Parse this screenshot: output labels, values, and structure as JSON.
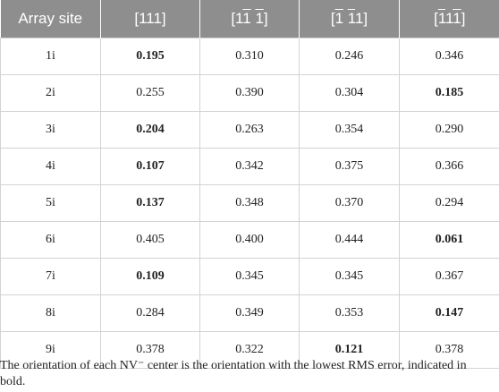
{
  "table": {
    "headers": [
      {
        "label": "Array site"
      },
      {
        "parts": [
          {
            "t": "[111]",
            "o": false
          }
        ]
      },
      {
        "parts": [
          {
            "t": "[1",
            "o": false
          },
          {
            "t": "1",
            "o": true
          },
          {
            "t": " ",
            "o": false
          },
          {
            "t": "1",
            "o": true
          },
          {
            "t": "]",
            "o": false
          }
        ]
      },
      {
        "parts": [
          {
            "t": "[",
            "o": false
          },
          {
            "t": "1",
            "o": true
          },
          {
            "t": " ",
            "o": false
          },
          {
            "t": "1",
            "o": true
          },
          {
            "t": "1]",
            "o": false
          }
        ]
      },
      {
        "parts": [
          {
            "t": "[",
            "o": false
          },
          {
            "t": "1",
            "o": true
          },
          {
            "t": "1",
            "o": false
          },
          {
            "t": "1",
            "o": true
          },
          {
            "t": "]",
            "o": false
          }
        ]
      }
    ],
    "rows": [
      {
        "site": "1i",
        "values": [
          "0.195",
          "0.310",
          "0.246",
          "0.346"
        ],
        "bold_index": 0
      },
      {
        "site": "2i",
        "values": [
          "0.255",
          "0.390",
          "0.304",
          "0.185"
        ],
        "bold_index": 3
      },
      {
        "site": "3i",
        "values": [
          "0.204",
          "0.263",
          "0.354",
          "0.290"
        ],
        "bold_index": 0
      },
      {
        "site": "4i",
        "values": [
          "0.107",
          "0.342",
          "0.375",
          "0.366"
        ],
        "bold_index": 0
      },
      {
        "site": "5i",
        "values": [
          "0.137",
          "0.348",
          "0.370",
          "0.294"
        ],
        "bold_index": 0
      },
      {
        "site": "6i",
        "values": [
          "0.405",
          "0.400",
          "0.444",
          "0.061"
        ],
        "bold_index": 3
      },
      {
        "site": "7i",
        "values": [
          "0.109",
          "0.345",
          "0.345",
          "0.367"
        ],
        "bold_index": 0
      },
      {
        "site": "8i",
        "values": [
          "0.284",
          "0.349",
          "0.353",
          "0.147"
        ],
        "bold_index": 3
      },
      {
        "site": "9i",
        "values": [
          "0.378",
          "0.322",
          "0.121",
          "0.378"
        ],
        "bold_index": 2
      }
    ],
    "caption": "The orientation of each NV⁻ center is the orientation with the lowest RMS error, indicated in bold."
  },
  "colors": {
    "header_bg": "#8e8e8e",
    "header_text": "#ffffff",
    "grid": "#d3d3d3",
    "text": "#222222"
  }
}
